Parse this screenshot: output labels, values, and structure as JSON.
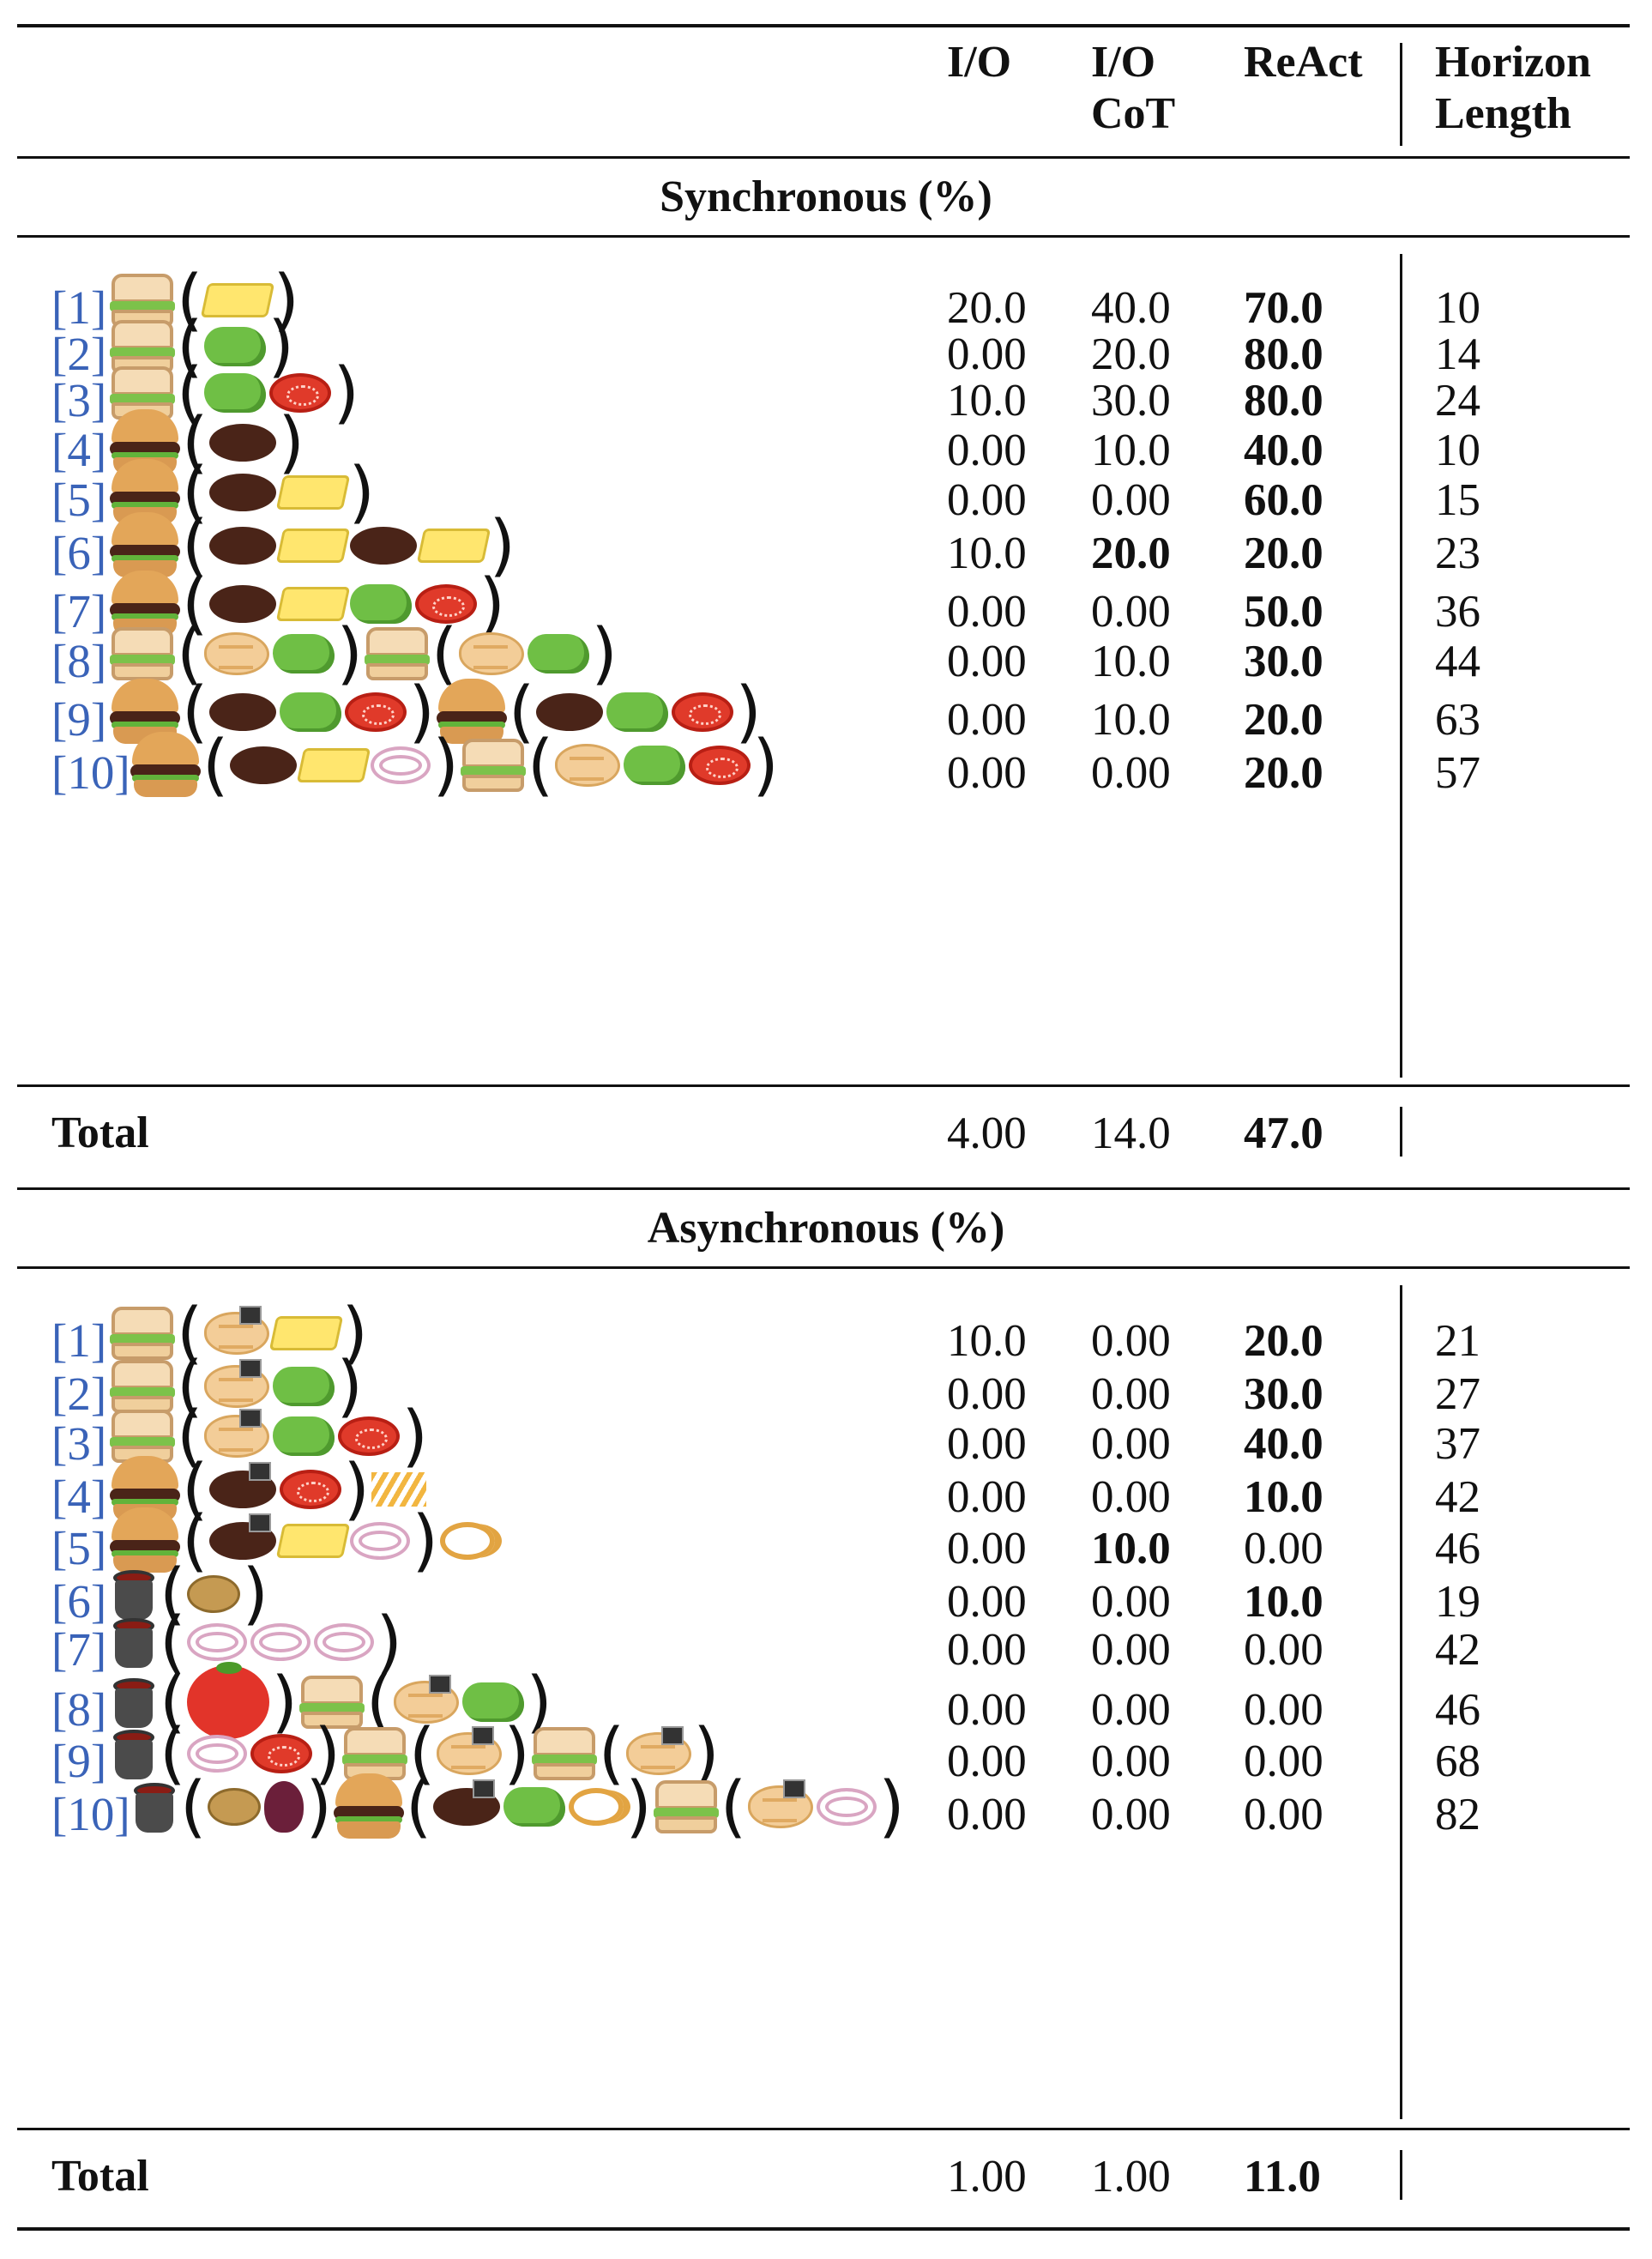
{
  "header": {
    "col1": "I/O",
    "col2_line1": "I/O",
    "col2_line2": "CoT",
    "col3": "ReAct",
    "col4_line1": "Horizon",
    "col4_line2": "Length"
  },
  "sync": {
    "title": "Synchronous (%)",
    "rows": [
      {
        "ref": "[1]",
        "io": "20.0",
        "cot": "40.0",
        "react": "70.0",
        "horizon": "10"
      },
      {
        "ref": "[2]",
        "io": "0.00",
        "cot": "20.0",
        "react": "80.0",
        "horizon": "14"
      },
      {
        "ref": "[3]",
        "io": "10.0",
        "cot": "30.0",
        "react": "80.0",
        "horizon": "24"
      },
      {
        "ref": "[4]",
        "io": "0.00",
        "cot": "10.0",
        "react": "40.0",
        "horizon": "10"
      },
      {
        "ref": "[5]",
        "io": "0.00",
        "cot": "0.00",
        "react": "60.0",
        "horizon": "15"
      },
      {
        "ref": "[6]",
        "io": "10.0",
        "cot": "20.0",
        "react": "20.0",
        "horizon": "23"
      },
      {
        "ref": "[7]",
        "io": "0.00",
        "cot": "0.00",
        "react": "50.0",
        "horizon": "36"
      },
      {
        "ref": "[8]",
        "io": "0.00",
        "cot": "10.0",
        "react": "30.0",
        "horizon": "44"
      },
      {
        "ref": "[9]",
        "io": "0.00",
        "cot": "10.0",
        "react": "20.0",
        "horizon": "63"
      },
      {
        "ref": "[10]",
        "io": "0.00",
        "cot": "0.00",
        "react": "20.0",
        "horizon": "57"
      }
    ],
    "total": {
      "label": "Total",
      "io": "4.00",
      "cot": "14.0",
      "react": "47.0"
    }
  },
  "async": {
    "title": "Asynchronous (%)",
    "rows": [
      {
        "ref": "[1]",
        "io": "10.0",
        "cot": "0.00",
        "react": "20.0",
        "horizon": "21"
      },
      {
        "ref": "[2]",
        "io": "0.00",
        "cot": "0.00",
        "react": "30.0",
        "horizon": "27"
      },
      {
        "ref": "[3]",
        "io": "0.00",
        "cot": "0.00",
        "react": "40.0",
        "horizon": "37"
      },
      {
        "ref": "[4]",
        "io": "0.00",
        "cot": "0.00",
        "react": "10.0",
        "horizon": "42"
      },
      {
        "ref": "[5]",
        "io": "0.00",
        "cot": "10.0",
        "react": "0.00",
        "horizon": "46"
      },
      {
        "ref": "[6]",
        "io": "0.00",
        "cot": "0.00",
        "react": "10.0",
        "horizon": "19"
      },
      {
        "ref": "[7]",
        "io": "0.00",
        "cot": "0.00",
        "react": "0.00",
        "horizon": "42"
      },
      {
        "ref": "[8]",
        "io": "0.00",
        "cot": "0.00",
        "react": "0.00",
        "horizon": "46"
      },
      {
        "ref": "[9]",
        "io": "0.00",
        "cot": "0.00",
        "react": "0.00",
        "horizon": "68"
      },
      {
        "ref": "[10]",
        "io": "0.00",
        "cot": "0.00",
        "react": "0.00",
        "horizon": "82"
      }
    ],
    "total": {
      "label": "Total",
      "io": "1.00",
      "cot": "1.00",
      "react": "11.0"
    }
  }
}
